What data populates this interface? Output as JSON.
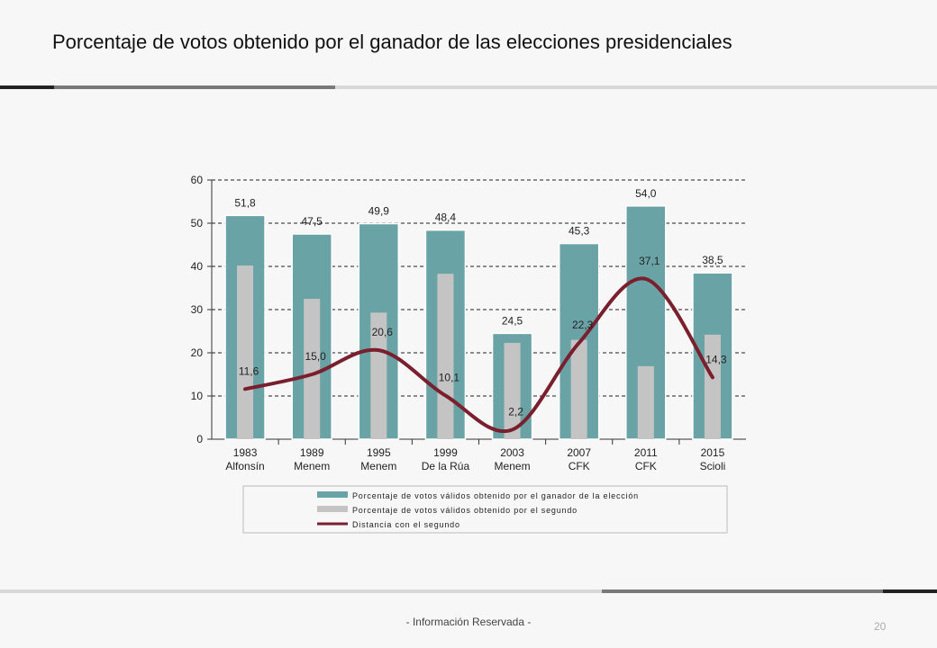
{
  "slide": {
    "title": "Porcentaje de votos obtenido por el ganador de las elecciones presidenciales",
    "footer": "- Información Reservada -",
    "page_number": "20"
  },
  "colors": {
    "winner_bar": "#6aa3a6",
    "second_bar": "#c4c4c4",
    "distance_line": "#7a1f2e",
    "rule_dark": "#222222",
    "rule_mid": "#7a7a7a",
    "rule_light": "#d8d8d8"
  },
  "chart_data": {
    "type": "bar",
    "categories": [
      [
        "1983",
        "Alfonsín"
      ],
      [
        "1989",
        "Menem"
      ],
      [
        "1995",
        "Menem"
      ],
      [
        "1999",
        "De la Rúa"
      ],
      [
        "2003",
        "Menem"
      ],
      [
        "2007",
        "CFK"
      ],
      [
        "2011",
        "CFK"
      ],
      [
        "2015",
        "Scioli"
      ]
    ],
    "series": [
      {
        "name": "Porcentaje de votos válidos obtenido por el ganador de la elección",
        "kind": "bar",
        "values": [
          51.8,
          47.5,
          49.9,
          48.4,
          24.5,
          45.3,
          54.0,
          38.5
        ],
        "labels": [
          "51,8",
          "47,5",
          "49,9",
          "48,4",
          "24,5",
          "45,3",
          "54,0",
          "38,5"
        ]
      },
      {
        "name": "Porcentaje de votos válidos obtenido por el segundo",
        "kind": "bar",
        "values": [
          40.2,
          32.5,
          29.3,
          38.3,
          22.3,
          23.0,
          16.9,
          24.2
        ]
      },
      {
        "name": "Distancia con el segundo",
        "kind": "line",
        "values": [
          11.6,
          15.0,
          20.6,
          10.1,
          2.2,
          22.3,
          37.1,
          14.3
        ],
        "labels": [
          "11,6",
          "15,0",
          "20,6",
          "10,1",
          "2,2",
          "22,3",
          "37,1",
          "14,3"
        ]
      }
    ],
    "ylim": [
      0,
      60
    ],
    "yticks": [
      "0",
      "10",
      "20",
      "30",
      "40",
      "50",
      "60"
    ],
    "grid": "dashed horizontal",
    "legend": "bottom"
  }
}
